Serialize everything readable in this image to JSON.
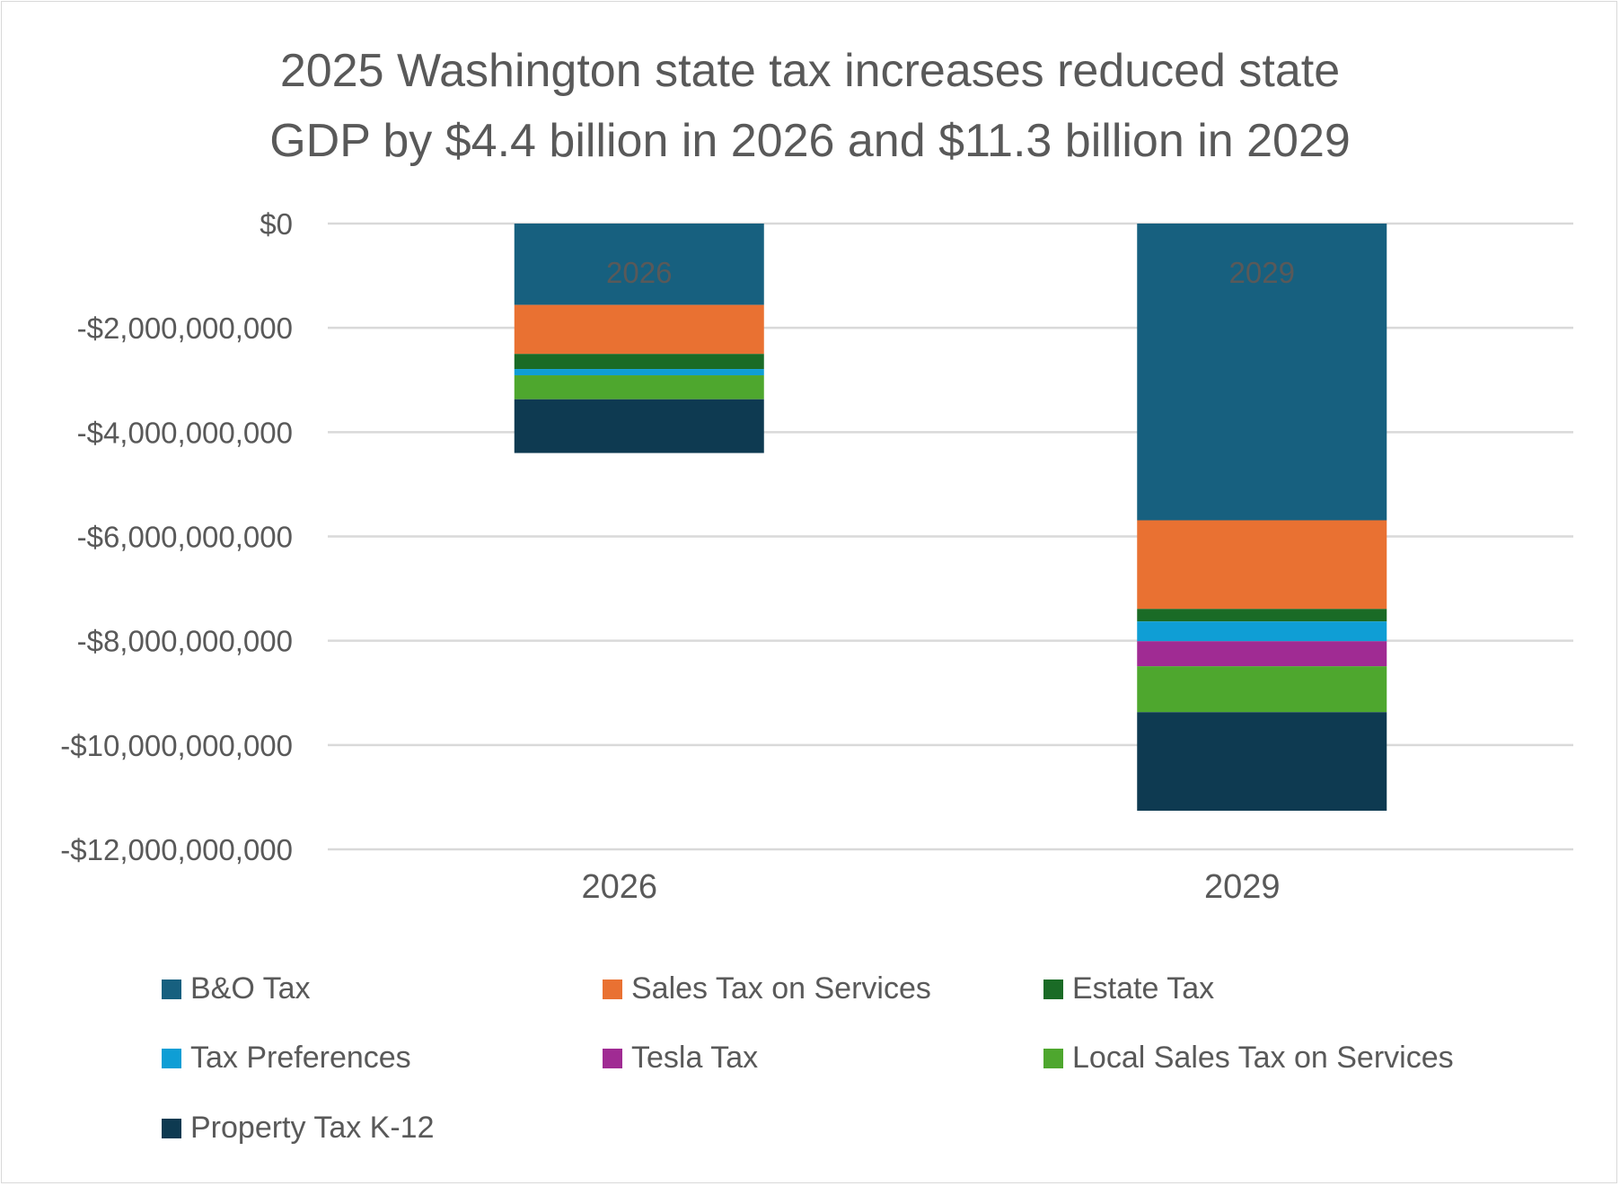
{
  "chart_data": {
    "type": "bar",
    "stacked": true,
    "title_lines": [
      "2025 Washington state tax increases reduced state",
      "GDP by $4.4 billion in 2026 and $11.3 billion in 2029"
    ],
    "xlabel": "",
    "ylabel": "",
    "categories": [
      "2026",
      "2029"
    ],
    "in_bar_labels": [
      "2026",
      "2029"
    ],
    "ylim": [
      -12000000000,
      0
    ],
    "yticks": [
      0,
      -2000000000,
      -4000000000,
      -6000000000,
      -8000000000,
      -10000000000,
      -12000000000
    ],
    "ytick_labels": [
      "$0",
      "-$2,000,000,000",
      "-$4,000,000,000",
      "-$6,000,000,000",
      "-$8,000,000,000",
      "-$10,000,000,000",
      "-$12,000,000,000"
    ],
    "grid": true,
    "legend_position": "bottom",
    "series": [
      {
        "name": "B&O Tax",
        "color": "#17607f",
        "values": [
          -1560000000,
          -5690000000
        ]
      },
      {
        "name": "Sales Tax on Services",
        "color": "#e97132",
        "values": [
          -940000000,
          -1700000000
        ]
      },
      {
        "name": "Estate Tax",
        "color": "#1a6b26",
        "values": [
          -290000000,
          -240000000
        ]
      },
      {
        "name": "Tax Preferences",
        "color": "#0f9ed5",
        "values": [
          -120000000,
          -380000000
        ]
      },
      {
        "name": "Tesla Tax",
        "color": "#a02b93",
        "values": [
          0,
          -480000000
        ]
      },
      {
        "name": "Local Sales Tax on Services",
        "color": "#4ea72e",
        "values": [
          -460000000,
          -880000000
        ]
      },
      {
        "name": "Property Tax K-12",
        "color": "#0e3a51",
        "values": [
          -1030000000,
          -1890000000
        ]
      }
    ],
    "totals": [
      -4400000000,
      -11300000000
    ]
  }
}
